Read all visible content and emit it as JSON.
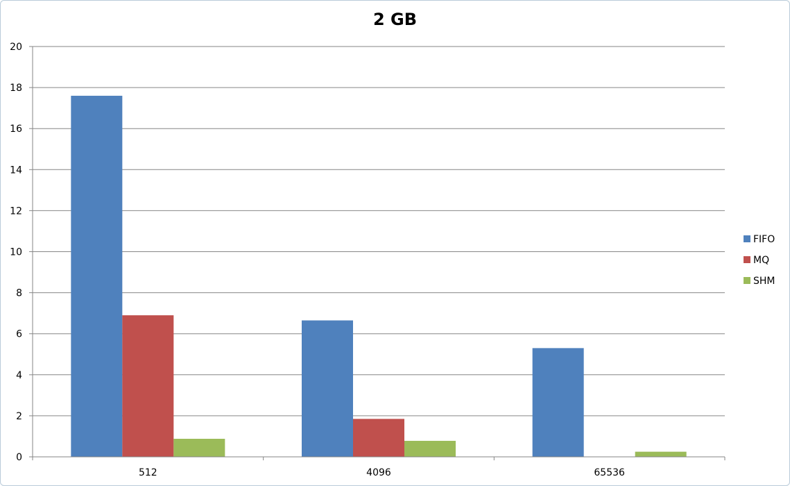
{
  "chart_data": {
    "type": "bar",
    "title": "2 GB",
    "xlabel": "",
    "ylabel": "",
    "categories": [
      "512",
      "4096",
      "65536"
    ],
    "series": [
      {
        "name": "FIFO",
        "values": [
          17.6,
          6.65,
          5.3
        ],
        "color": "#4f81bd"
      },
      {
        "name": "MQ",
        "values": [
          6.9,
          1.85,
          0
        ],
        "color": "#c0504d"
      },
      {
        "name": "SHM",
        "values": [
          0.88,
          0.78,
          0.25
        ],
        "color": "#9bbb59"
      }
    ],
    "ylim": [
      0,
      20
    ],
    "yticks": [
      0,
      2,
      4,
      6,
      8,
      10,
      12,
      14,
      16,
      18,
      20
    ],
    "grid": true,
    "legend_position": "right"
  }
}
